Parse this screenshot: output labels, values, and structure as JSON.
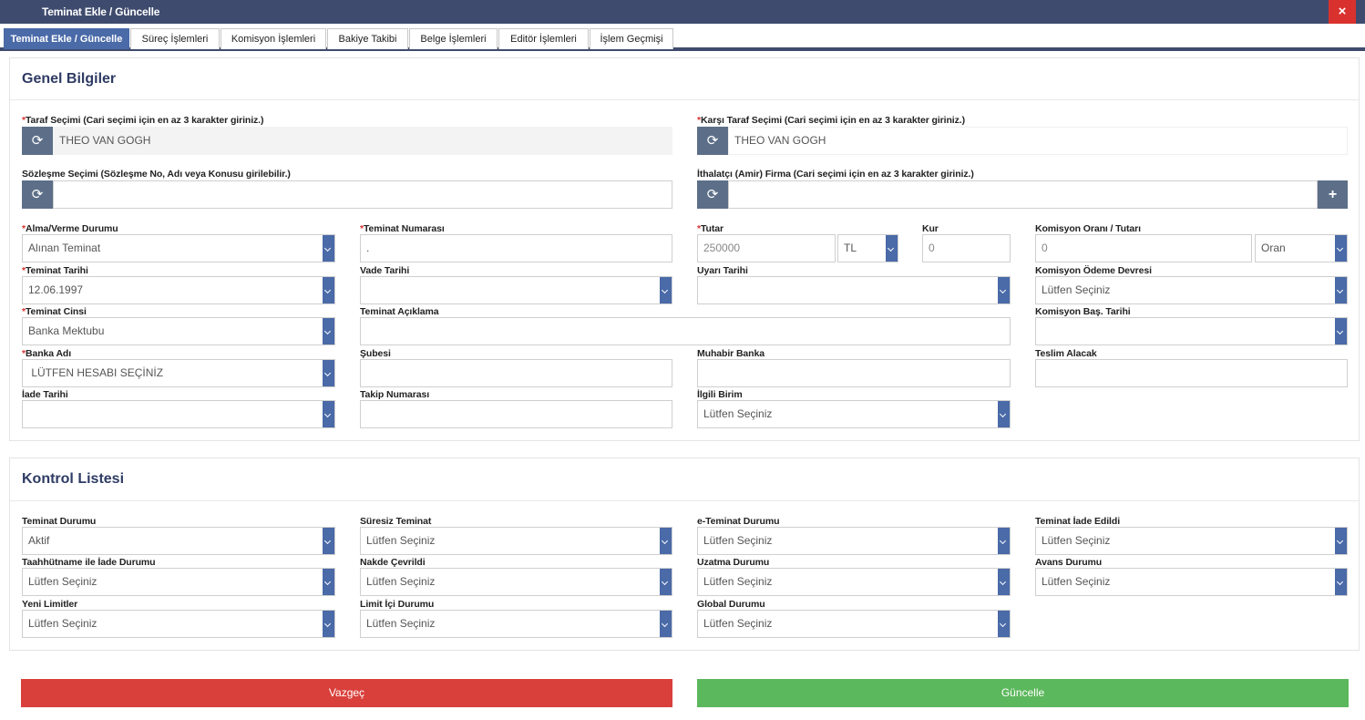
{
  "window": {
    "title": "Teminat Ekle / Güncelle",
    "close_icon": "×"
  },
  "tabs": [
    {
      "label": "Teminat Ekle / Güncelle",
      "active": true
    },
    {
      "label": "Süreç İşlemleri"
    },
    {
      "label": "Komisyon İşlemleri"
    },
    {
      "label": "Bakiye Takibi"
    },
    {
      "label": "Belge İşlemleri"
    },
    {
      "label": "Editör İşlemleri"
    },
    {
      "label": "İşlem Geçmişi"
    }
  ],
  "genel": {
    "title": "Genel Bilgiler",
    "taraf": {
      "label": "Taraf Seçimi (Cari seçimi için en az 3 karakter giriniz.)",
      "value": "THEO VAN GOGH"
    },
    "karsi_taraf": {
      "label": "Karşı Taraf Seçimi (Cari seçimi için en az 3 karakter giriniz.)",
      "value": "THEO VAN GOGH"
    },
    "sozlesme": {
      "label": "Sözleşme Seçimi (Sözleşme No, Adı veya Konusu girilebilir.)",
      "value": ""
    },
    "ithalatci": {
      "label": "İthalatçı (Amir) Firma (Cari seçimi için en az 3 karakter giriniz.)",
      "value": ""
    },
    "alma_verme": {
      "label": "Alma/Verme Durumu",
      "value": "Alınan Teminat"
    },
    "teminat_no": {
      "label": "Teminat Numarası",
      "value": "."
    },
    "tutar": {
      "label": "Tutar",
      "value": "250000",
      "currency": "TL"
    },
    "kur": {
      "label": "Kur",
      "value": "0"
    },
    "komisyon_oran": {
      "label": "Komisyon Oranı / Tutarı",
      "value": "0",
      "type": "Oran"
    },
    "teminat_tarihi": {
      "label": "Teminat Tarihi",
      "value": "12.06.1997"
    },
    "vade_tarihi": {
      "label": "Vade Tarihi",
      "value": ""
    },
    "uyari_tarihi": {
      "label": "Uyarı Tarihi",
      "value": ""
    },
    "komisyon_odeme": {
      "label": "Komisyon Ödeme Devresi",
      "value": "Lütfen Seçiniz"
    },
    "teminat_cinsi": {
      "label": "Teminat Cinsi",
      "value": "Banka Mektubu"
    },
    "teminat_aciklama": {
      "label": "Teminat Açıklama",
      "value": ""
    },
    "komisyon_bas": {
      "label": "Komisyon Baş. Tarihi",
      "value": ""
    },
    "banka_adi": {
      "label": "Banka Adı",
      "value": " LÜTFEN HESABI SEÇİNİZ"
    },
    "subesi": {
      "label": "Şubesi",
      "value": ""
    },
    "muhabir_banka": {
      "label": "Muhabir Banka",
      "value": ""
    },
    "teslim_alacak": {
      "label": "Teslim Alacak",
      "value": ""
    },
    "iade_tarihi": {
      "label": "İade Tarihi",
      "value": ""
    },
    "takip_no": {
      "label": "Takip Numarası",
      "value": ""
    },
    "ilgili_birim": {
      "label": "İlgili Birim",
      "value": "Lütfen Seçiniz"
    }
  },
  "kontrol": {
    "title": "Kontrol Listesi",
    "teminat_durumu": {
      "label": "Teminat Durumu",
      "value": "Aktif"
    },
    "suresiz": {
      "label": "Süresiz Teminat",
      "value": "Lütfen Seçiniz"
    },
    "e_teminat": {
      "label": "e-Teminat Durumu",
      "value": "Lütfen Seçiniz"
    },
    "iade_edildi": {
      "label": "Teminat İade Edildi",
      "value": "Lütfen Seçiniz"
    },
    "taahhutname": {
      "label": "Taahhütname ile İade Durumu",
      "value": "Lütfen Seçiniz"
    },
    "nakde": {
      "label": "Nakde Çevrildi",
      "value": "Lütfen Seçiniz"
    },
    "uzatma": {
      "label": "Uzatma Durumu",
      "value": "Lütfen Seçiniz"
    },
    "avans": {
      "label": "Avans Durumu",
      "value": "Lütfen Seçiniz"
    },
    "yeni_limitler": {
      "label": "Yeni Limitler",
      "value": "Lütfen Seçiniz"
    },
    "limit_ici": {
      "label": "Limit İçi Durumu",
      "value": "Lütfen Seçiniz"
    },
    "global": {
      "label": "Global Durumu",
      "value": "Lütfen Seçiniz"
    }
  },
  "actions": {
    "cancel": "Vazgeç",
    "update": "Güncelle"
  },
  "icons": {
    "refresh": "refresh-icon",
    "plus": "plus-icon",
    "dropdown": "chevron-down-icon"
  },
  "colors": {
    "header": "#3f4b6e",
    "accent": "#4a6aa8",
    "danger": "#d9403b",
    "success": "#5cb85c"
  }
}
